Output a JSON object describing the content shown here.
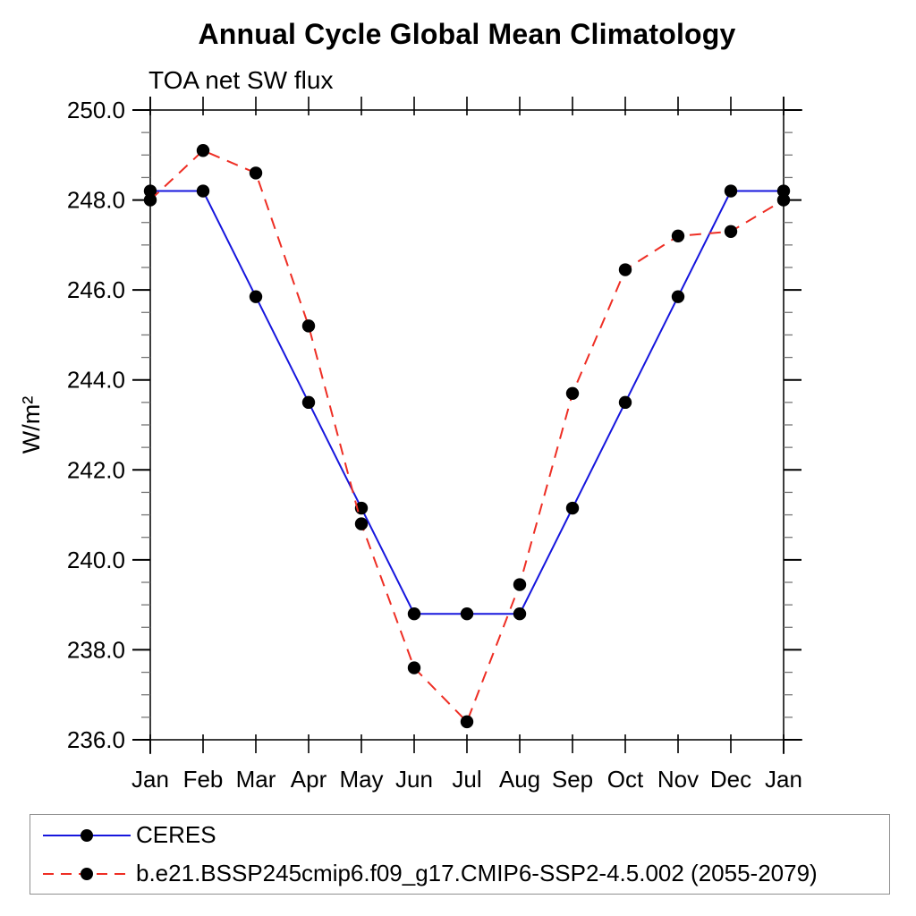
{
  "page": {
    "background": "#ffffff"
  },
  "chart_data": {
    "type": "line",
    "title": "Annual Cycle Global Mean Climatology",
    "subtitle": "TOA net SW flux",
    "ylabel": "W/m²",
    "xlabel": "",
    "categories": [
      "Jan",
      "Feb",
      "Mar",
      "Apr",
      "May",
      "Jun",
      "Jul",
      "Aug",
      "Sep",
      "Oct",
      "Nov",
      "Dec",
      "Jan"
    ],
    "ylim": [
      236.0,
      250.0
    ],
    "ytick_step": 2.0,
    "ytick_minor_step": 0.5,
    "ytick_labels": [
      "236.0",
      "238.0",
      "240.0",
      "242.0",
      "244.0",
      "246.0",
      "248.0",
      "250.0"
    ],
    "grid": false,
    "legend_position": "bottom-left-box",
    "axis_color": "#3c3c3c",
    "tick_color": "#000000",
    "marker_color": "#000000",
    "series": [
      {
        "name": "CERES",
        "color": "#1616dd",
        "style": "solid",
        "marker": "filled-circle",
        "values": [
          248.2,
          248.2,
          245.85,
          243.5,
          241.15,
          238.8,
          238.8,
          238.8,
          241.15,
          243.5,
          245.85,
          248.2,
          248.2
        ]
      },
      {
        "name": "b.e21.BSSP245cmip6.f09_g17.CMIP6-SSP2-4.5.002 (2055-2079)",
        "color": "#ee2e24",
        "style": "dashed",
        "marker": "filled-circle",
        "values": [
          248.0,
          249.1,
          248.6,
          245.2,
          240.8,
          237.6,
          236.4,
          239.45,
          243.7,
          246.45,
          247.2,
          247.3,
          248.0
        ]
      }
    ]
  }
}
